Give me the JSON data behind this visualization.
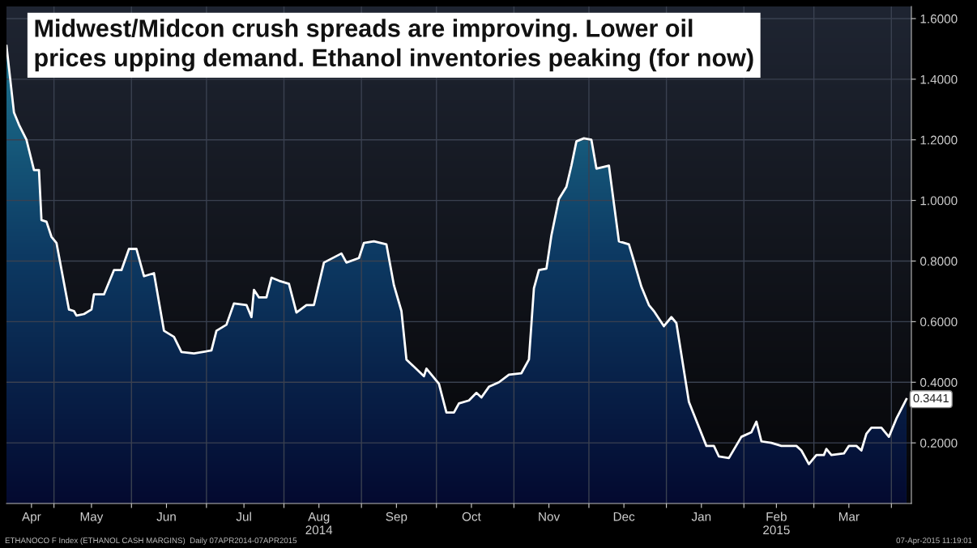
{
  "chart_data": {
    "type": "area",
    "title": "Midwest/Midcon crush spreads are improving. Lower oil\nprices upping demand. Ethanol inventories peaking (for now)",
    "x": [
      "2014-04-12",
      "2014-04-15",
      "2014-04-17",
      "2014-04-20",
      "2014-04-23",
      "2014-04-25",
      "2014-04-26",
      "2014-04-28",
      "2014-04-30",
      "2014-05-02",
      "2014-05-07",
      "2014-05-09",
      "2014-05-10",
      "2014-05-13",
      "2014-05-16",
      "2014-05-17",
      "2014-05-21",
      "2014-05-25",
      "2014-05-28",
      "2014-05-31",
      "2014-06-03",
      "2014-06-06",
      "2014-06-10",
      "2014-06-14",
      "2014-06-18",
      "2014-06-21",
      "2014-06-26",
      "2014-07-03",
      "2014-07-05",
      "2014-07-09",
      "2014-07-12",
      "2014-07-17",
      "2014-07-19",
      "2014-07-20",
      "2014-07-22",
      "2014-07-25",
      "2014-07-27",
      "2014-07-30",
      "2014-08-03",
      "2014-08-06",
      "2014-08-10",
      "2014-08-13",
      "2014-08-17",
      "2014-08-24",
      "2014-08-26",
      "2014-08-31",
      "2014-09-02",
      "2014-09-06",
      "2014-09-11",
      "2014-09-14",
      "2014-09-17",
      "2014-09-19",
      "2014-09-26",
      "2014-09-27",
      "2014-10-02",
      "2014-10-05",
      "2014-10-08",
      "2014-10-10",
      "2014-10-14",
      "2014-10-17",
      "2014-10-19",
      "2014-10-22",
      "2014-10-26",
      "2014-10-30",
      "2014-11-04",
      "2014-11-07",
      "2014-11-09",
      "2014-11-11",
      "2014-11-14",
      "2014-11-16",
      "2014-11-19",
      "2014-11-22",
      "2014-11-24",
      "2014-11-26",
      "2014-11-29",
      "2014-12-02",
      "2014-12-04",
      "2014-12-09",
      "2014-12-13",
      "2014-12-17",
      "2014-12-19",
      "2014-12-22",
      "2014-12-25",
      "2014-12-27",
      "2014-12-31",
      "2015-01-03",
      "2015-01-05",
      "2015-01-10",
      "2015-01-17",
      "2015-01-20",
      "2015-01-22",
      "2015-01-26",
      "2015-01-31",
      "2015-02-04",
      "2015-02-06",
      "2015-02-08",
      "2015-02-12",
      "2015-02-16",
      "2015-02-22",
      "2015-02-24",
      "2015-02-27",
      "2015-03-02",
      "2015-03-05",
      "2015-03-06",
      "2015-03-08",
      "2015-03-13",
      "2015-03-15",
      "2015-03-18",
      "2015-03-20",
      "2015-03-22",
      "2015-03-24",
      "2015-03-28",
      "2015-03-31",
      "2015-04-03",
      "2015-04-07"
    ],
    "series": [
      {
        "color": "#ffffff",
        "values": [
          1.51,
          1.29,
          1.25,
          1.2,
          1.1,
          1.1,
          0.935,
          0.93,
          0.88,
          0.86,
          0.64,
          0.635,
          0.62,
          0.625,
          0.64,
          0.69,
          0.69,
          0.77,
          0.77,
          0.84,
          0.84,
          0.75,
          0.76,
          0.57,
          0.55,
          0.5,
          0.495,
          0.505,
          0.57,
          0.59,
          0.66,
          0.655,
          0.615,
          0.705,
          0.68,
          0.68,
          0.745,
          0.735,
          0.725,
          0.63,
          0.655,
          0.655,
          0.795,
          0.825,
          0.795,
          0.81,
          0.86,
          0.865,
          0.855,
          0.72,
          0.635,
          0.475,
          0.42,
          0.445,
          0.395,
          0.3,
          0.3,
          0.33,
          0.34,
          0.365,
          0.35,
          0.385,
          0.4,
          0.425,
          0.43,
          0.475,
          0.71,
          0.77,
          0.775,
          0.885,
          1.005,
          1.045,
          1.115,
          1.195,
          1.205,
          1.2,
          1.105,
          1.115,
          0.865,
          0.855,
          0.8,
          0.715,
          0.655,
          0.635,
          0.585,
          0.615,
          0.595,
          0.335,
          0.19,
          0.19,
          0.155,
          0.15,
          0.22,
          0.235,
          0.27,
          0.205,
          0.2,
          0.19,
          0.19,
          0.175,
          0.13,
          0.16,
          0.16,
          0.18,
          0.16,
          0.165,
          0.19,
          0.19,
          0.175,
          0.23,
          0.25,
          0.25,
          0.22,
          0.28,
          0.3441
        ]
      }
    ],
    "xlim": [
      "2014-04-12",
      "2015-04-09"
    ],
    "xticks": [
      {
        "value": "2014-04-22",
        "label": "Apr"
      },
      {
        "value": "2014-05-01",
        "label": null
      },
      {
        "value": "2014-05-16",
        "label": "May"
      },
      {
        "value": "2014-06-01",
        "label": null
      },
      {
        "value": "2014-06-15",
        "label": "Jun"
      },
      {
        "value": "2014-07-01",
        "label": null
      },
      {
        "value": "2014-07-16",
        "label": "Jul"
      },
      {
        "value": "2014-08-01",
        "label": null
      },
      {
        "value": "2014-08-15",
        "label": "Aug\n2014"
      },
      {
        "value": "2014-09-01",
        "label": null
      },
      {
        "value": "2014-09-15",
        "label": "Sep"
      },
      {
        "value": "2014-10-01",
        "label": null
      },
      {
        "value": "2014-10-15",
        "label": "Oct"
      },
      {
        "value": "2014-11-01",
        "label": null
      },
      {
        "value": "2014-11-15",
        "label": "Nov"
      },
      {
        "value": "2014-12-01",
        "label": null
      },
      {
        "value": "2014-12-15",
        "label": "Dec"
      },
      {
        "value": "2015-01-01",
        "label": null
      },
      {
        "value": "2015-01-15",
        "label": "Jan"
      },
      {
        "value": "2015-02-01",
        "label": null
      },
      {
        "value": "2015-02-14",
        "label": "Feb\n2015"
      },
      {
        "value": "2015-03-01",
        "label": null
      },
      {
        "value": "2015-03-15",
        "label": "Mar"
      },
      {
        "value": "2015-04-01",
        "label": null
      }
    ],
    "ylim": [
      0,
      1.64
    ],
    "yticks": [
      {
        "value": 0.2,
        "label": "0.2000"
      },
      {
        "value": 0.4,
        "label": "0.4000"
      },
      {
        "value": 0.6,
        "label": "0.6000"
      },
      {
        "value": 0.8,
        "label": "0.8000"
      },
      {
        "value": 1.0,
        "label": "1.0000"
      },
      {
        "value": 1.2,
        "label": "1.2000"
      },
      {
        "value": 1.4,
        "label": "1.4000"
      },
      {
        "value": 1.6,
        "label": "1.6000"
      }
    ],
    "grid": true,
    "annotations": [
      {
        "text": "0.3441",
        "x": "2015-04-07",
        "y": 0.3441
      },
      "ETHANOCO F Index (ETHANOL CASH MARGINS)  Daily 07APR2014-07APR2015",
      "07-Apr-2015 11:19:01"
    ]
  }
}
